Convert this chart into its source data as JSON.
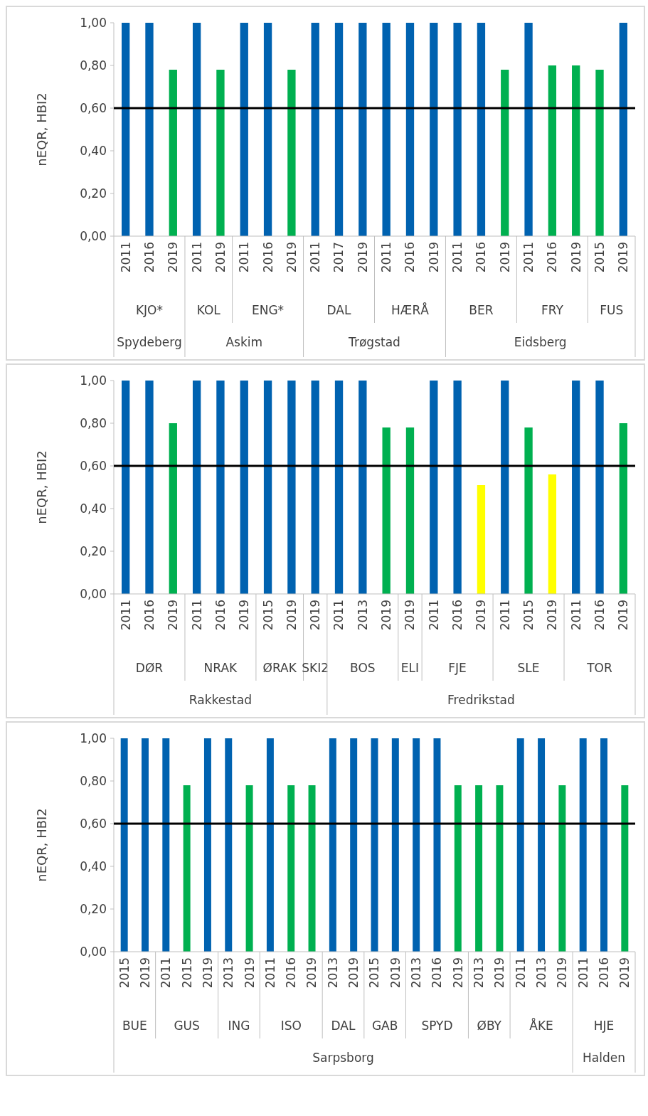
{
  "chart_data": [
    {
      "type": "bar",
      "ylabel": "nEQR, HBI2",
      "ylim": [
        0,
        1
      ],
      "yticks": [
        {
          "value": 0,
          "label": "0,00"
        },
        {
          "value": 0.2,
          "label": "0,20"
        },
        {
          "value": 0.4,
          "label": "0,40"
        },
        {
          "value": 0.6,
          "label": "0,60"
        },
        {
          "value": 0.8,
          "label": "0,80"
        },
        {
          "value": 1,
          "label": "1,00"
        }
      ],
      "categories": [
        "2011",
        "2016",
        "2019",
        "2011",
        "2019",
        "2011",
        "2016",
        "2019",
        "2011",
        "2017",
        "2019",
        "2011",
        "2016",
        "2019",
        "2011",
        "2016",
        "2019",
        "2011",
        "2016",
        "2019",
        "2015",
        "2019"
      ],
      "values": [
        1,
        1,
        0.78,
        1,
        0.78,
        1,
        1,
        0.78,
        1,
        1,
        1,
        1,
        1,
        1,
        1,
        1,
        0.78,
        1,
        0.8,
        0.8,
        0.78,
        1
      ],
      "colors": [
        "#0062b0",
        "#0062b0",
        "#00b050",
        "#0062b0",
        "#00b050",
        "#0062b0",
        "#0062b0",
        "#00b050",
        "#0062b0",
        "#0062b0",
        "#0062b0",
        "#0062b0",
        "#0062b0",
        "#0062b0",
        "#0062b0",
        "#0062b0",
        "#00b050",
        "#0062b0",
        "#00b050",
        "#00b050",
        "#00b050",
        "#0062b0"
      ],
      "ref_lines": [
        {
          "axis": "y",
          "value": 0.6,
          "color": "#000000"
        }
      ],
      "annotations": [
        "KJO*",
        "KOL",
        "ENG*",
        "DAL",
        "HÆRÅ",
        "BER",
        "FRY",
        "FUS",
        "Spydeberg",
        "Askim",
        "Trøgstad",
        "Eidsberg"
      ]
    },
    {
      "type": "bar",
      "ylabel": "nEQR, HBI2",
      "ylim": [
        0,
        1
      ],
      "yticks": [
        {
          "value": 0,
          "label": "0,00"
        },
        {
          "value": 0.2,
          "label": "0,20"
        },
        {
          "value": 0.4,
          "label": "0,40"
        },
        {
          "value": 0.6,
          "label": "0,60"
        },
        {
          "value": 0.8,
          "label": "0,80"
        },
        {
          "value": 1,
          "label": "1,00"
        }
      ],
      "categories": [
        "2011",
        "2016",
        "2019",
        "2011",
        "2016",
        "2019",
        "2015",
        "2019",
        "2019",
        "2011",
        "2013",
        "2019",
        "2019",
        "2011",
        "2016",
        "2019",
        "2011",
        "2015",
        "2019",
        "2011",
        "2016",
        "2019"
      ],
      "values": [
        1,
        1,
        0.8,
        1,
        1,
        1,
        1,
        1,
        1,
        1,
        1,
        0.78,
        0.78,
        1,
        1,
        0.51,
        1,
        0.78,
        0.56,
        1,
        1,
        0.8
      ],
      "colors": [
        "#0062b0",
        "#0062b0",
        "#00b050",
        "#0062b0",
        "#0062b0",
        "#0062b0",
        "#0062b0",
        "#0062b0",
        "#0062b0",
        "#0062b0",
        "#0062b0",
        "#00b050",
        "#00b050",
        "#0062b0",
        "#0062b0",
        "#ffff00",
        "#0062b0",
        "#00b050",
        "#ffff00",
        "#0062b0",
        "#0062b0",
        "#00b050"
      ],
      "ref_lines": [
        {
          "axis": "y",
          "value": 0.6,
          "color": "#000000"
        }
      ],
      "annotations": [
        "DØR",
        "NRAK",
        "ØRAK",
        "SKI2",
        "BOS",
        "ELI",
        "FJE",
        "SLE",
        "TOR",
        "Rakkestad",
        "Fredrikstad"
      ]
    },
    {
      "type": "bar",
      "ylabel": "nEQR, HBI2",
      "ylim": [
        0,
        1
      ],
      "yticks": [
        {
          "value": 0,
          "label": "0,00"
        },
        {
          "value": 0.2,
          "label": "0,20"
        },
        {
          "value": 0.4,
          "label": "0,40"
        },
        {
          "value": 0.6,
          "label": "0,60"
        },
        {
          "value": 0.8,
          "label": "0,80"
        },
        {
          "value": 1,
          "label": "1,00"
        }
      ],
      "categories": [
        "2015",
        "2019",
        "2011",
        "2015",
        "2019",
        "2013",
        "2019",
        "2011",
        "2016",
        "2019",
        "2013",
        "2019",
        "2015",
        "2019",
        "2013",
        "2016",
        "2019",
        "2013",
        "2019",
        "2011",
        "2013",
        "2019",
        "2011",
        "2016",
        "2019"
      ],
      "values": [
        1,
        1,
        1,
        0.78,
        1,
        1,
        0.78,
        1,
        0.78,
        0.78,
        1,
        1,
        1,
        1,
        1,
        1,
        0.78,
        0.78,
        0.78,
        1,
        1,
        0.78,
        1,
        1,
        0.78
      ],
      "colors": [
        "#0062b0",
        "#0062b0",
        "#0062b0",
        "#00b050",
        "#0062b0",
        "#0062b0",
        "#00b050",
        "#0062b0",
        "#00b050",
        "#00b050",
        "#0062b0",
        "#0062b0",
        "#0062b0",
        "#0062b0",
        "#0062b0",
        "#0062b0",
        "#00b050",
        "#00b050",
        "#00b050",
        "#0062b0",
        "#0062b0",
        "#00b050",
        "#0062b0",
        "#0062b0",
        "#00b050"
      ],
      "ref_lines": [
        {
          "axis": "y",
          "value": 0.6,
          "color": "#000000"
        }
      ],
      "annotations": [
        "BUE",
        "GUS",
        "ING",
        "ISO",
        "DAL",
        "GAB",
        "SPYD",
        "ØBY",
        "ÅKE",
        "HJE",
        "Sarpsborg",
        "Halden"
      ]
    }
  ]
}
